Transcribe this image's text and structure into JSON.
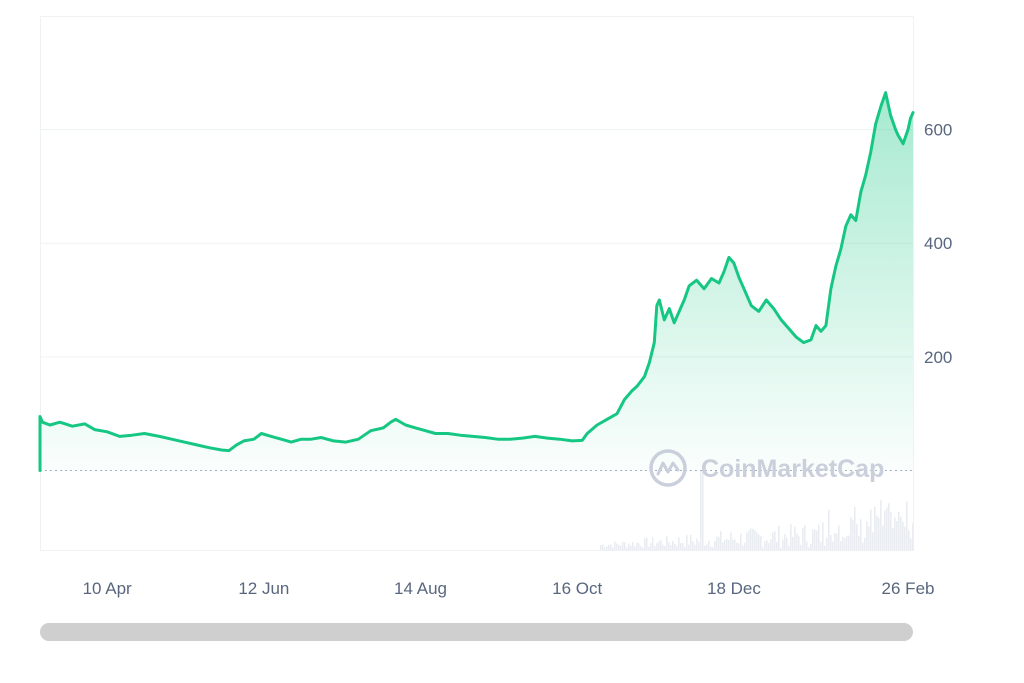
{
  "watermark": "CoinMarketCap",
  "colors": {
    "line": "#16c784",
    "grid": "#eff2f5",
    "baseline": "#a6b0c3",
    "axis_text": "#58667e",
    "volume": "#e9edf2",
    "scrollbar": "#cfcfcf"
  },
  "chart_data": {
    "type": "area",
    "xlim": [
      "2023-03-14",
      "2024-02-28"
    ],
    "ylim": [
      -140,
      800
    ],
    "baseline_value": 0,
    "grid": true,
    "x_ticks": [
      {
        "date": "2023-04-10",
        "label": "10 Apr"
      },
      {
        "date": "2023-06-12",
        "label": "12 Jun"
      },
      {
        "date": "2023-08-14",
        "label": "14 Aug"
      },
      {
        "date": "2023-10-16",
        "label": "16 Oct"
      },
      {
        "date": "2023-12-18",
        "label": "18 Dec"
      },
      {
        "date": "2024-02-26",
        "label": "26 Feb"
      }
    ],
    "y_ticks": [
      {
        "value": 200,
        "label": "200"
      },
      {
        "value": 400,
        "label": "400"
      },
      {
        "value": 600,
        "label": "600"
      }
    ],
    "series": [
      {
        "points": [
          [
            "2023-03-14",
            0
          ],
          [
            "2023-03-14",
            95
          ],
          [
            "2023-03-15",
            85
          ],
          [
            "2023-03-18",
            80
          ],
          [
            "2023-03-22",
            85
          ],
          [
            "2023-03-27",
            78
          ],
          [
            "2023-04-01",
            82
          ],
          [
            "2023-04-05",
            72
          ],
          [
            "2023-04-10",
            68
          ],
          [
            "2023-04-15",
            60
          ],
          [
            "2023-04-20",
            62
          ],
          [
            "2023-04-25",
            65
          ],
          [
            "2023-05-01",
            60
          ],
          [
            "2023-05-06",
            55
          ],
          [
            "2023-05-11",
            50
          ],
          [
            "2023-05-16",
            45
          ],
          [
            "2023-05-21",
            40
          ],
          [
            "2023-05-26",
            36
          ],
          [
            "2023-05-29",
            35
          ],
          [
            "2023-06-01",
            45
          ],
          [
            "2023-06-04",
            52
          ],
          [
            "2023-06-08",
            55
          ],
          [
            "2023-06-11",
            65
          ],
          [
            "2023-06-15",
            60
          ],
          [
            "2023-06-19",
            55
          ],
          [
            "2023-06-23",
            50
          ],
          [
            "2023-06-27",
            55
          ],
          [
            "2023-07-01",
            55
          ],
          [
            "2023-07-05",
            58
          ],
          [
            "2023-07-10",
            52
          ],
          [
            "2023-07-15",
            50
          ],
          [
            "2023-07-20",
            55
          ],
          [
            "2023-07-25",
            70
          ],
          [
            "2023-07-30",
            75
          ],
          [
            "2023-08-02",
            85
          ],
          [
            "2023-08-04",
            90
          ],
          [
            "2023-08-08",
            80
          ],
          [
            "2023-08-12",
            75
          ],
          [
            "2023-08-16",
            70
          ],
          [
            "2023-08-20",
            65
          ],
          [
            "2023-08-25",
            65
          ],
          [
            "2023-08-30",
            62
          ],
          [
            "2023-09-04",
            60
          ],
          [
            "2023-09-09",
            58
          ],
          [
            "2023-09-14",
            55
          ],
          [
            "2023-09-19",
            55
          ],
          [
            "2023-09-24",
            57
          ],
          [
            "2023-09-29",
            60
          ],
          [
            "2023-10-04",
            57
          ],
          [
            "2023-10-09",
            55
          ],
          [
            "2023-10-14",
            52
          ],
          [
            "2023-10-18",
            53
          ],
          [
            "2023-10-20",
            65
          ],
          [
            "2023-10-24",
            80
          ],
          [
            "2023-10-28",
            90
          ],
          [
            "2023-11-01",
            100
          ],
          [
            "2023-11-04",
            125
          ],
          [
            "2023-11-07",
            140
          ],
          [
            "2023-11-09",
            148
          ],
          [
            "2023-11-12",
            165
          ],
          [
            "2023-11-14",
            190
          ],
          [
            "2023-11-16",
            225
          ],
          [
            "2023-11-17",
            290
          ],
          [
            "2023-11-18",
            300
          ],
          [
            "2023-11-20",
            265
          ],
          [
            "2023-11-22",
            285
          ],
          [
            "2023-11-24",
            260
          ],
          [
            "2023-11-26",
            280
          ],
          [
            "2023-11-28",
            300
          ],
          [
            "2023-11-30",
            325
          ],
          [
            "2023-12-03",
            335
          ],
          [
            "2023-12-06",
            320
          ],
          [
            "2023-12-09",
            338
          ],
          [
            "2023-12-12",
            330
          ],
          [
            "2023-12-14",
            350
          ],
          [
            "2023-12-16",
            375
          ],
          [
            "2023-12-18",
            365
          ],
          [
            "2023-12-20",
            340
          ],
          [
            "2023-12-22",
            320
          ],
          [
            "2023-12-25",
            290
          ],
          [
            "2023-12-28",
            280
          ],
          [
            "2023-12-31",
            300
          ],
          [
            "2024-01-03",
            285
          ],
          [
            "2024-01-06",
            265
          ],
          [
            "2024-01-09",
            250
          ],
          [
            "2024-01-12",
            235
          ],
          [
            "2024-01-15",
            225
          ],
          [
            "2024-01-18",
            230
          ],
          [
            "2024-01-20",
            255
          ],
          [
            "2024-01-22",
            245
          ],
          [
            "2024-01-24",
            255
          ],
          [
            "2024-01-26",
            320
          ],
          [
            "2024-01-28",
            360
          ],
          [
            "2024-01-30",
            390
          ],
          [
            "2024-02-01",
            430
          ],
          [
            "2024-02-03",
            450
          ],
          [
            "2024-02-05",
            440
          ],
          [
            "2024-02-07",
            490
          ],
          [
            "2024-02-09",
            520
          ],
          [
            "2024-02-11",
            560
          ],
          [
            "2024-02-13",
            610
          ],
          [
            "2024-02-15",
            640
          ],
          [
            "2024-02-17",
            665
          ],
          [
            "2024-02-19",
            625
          ],
          [
            "2024-02-21",
            600
          ],
          [
            "2024-02-22",
            590
          ],
          [
            "2024-02-24",
            575
          ],
          [
            "2024-02-26",
            600
          ],
          [
            "2024-02-27",
            620
          ],
          [
            "2024-02-28",
            630
          ]
        ]
      }
    ]
  }
}
